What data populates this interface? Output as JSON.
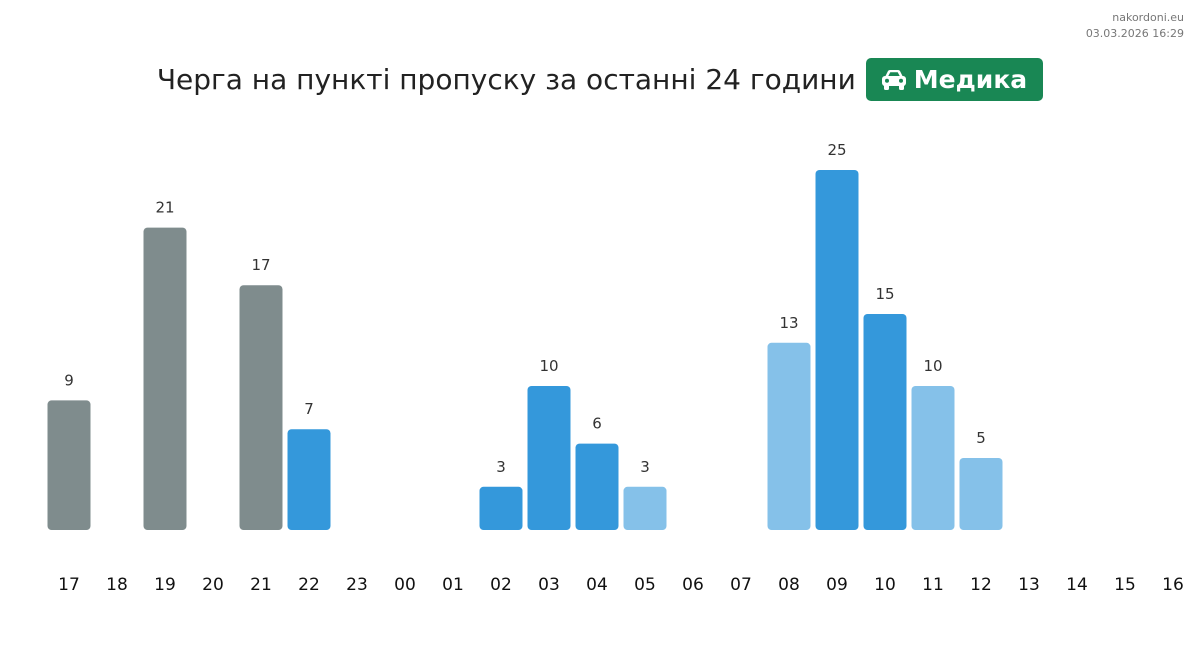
{
  "site": {
    "name": "nakordoni.eu",
    "timestamp": "03.03.2026 16:29"
  },
  "header": {
    "title": "Черга на пункті пропуску за останні 24 години",
    "badge_icon": "car-icon",
    "badge_label": "Медика",
    "badge_color": "#198754"
  },
  "chart_data": {
    "type": "bar",
    "title": "Черга на пункті пропуску за останні 24 години",
    "xlabel": "",
    "ylabel": "",
    "ylim": [
      0,
      25
    ],
    "grid": false,
    "legend": "none",
    "categories": [
      "17",
      "18",
      "19",
      "20",
      "21",
      "22",
      "23",
      "00",
      "01",
      "02",
      "03",
      "04",
      "05",
      "06",
      "07",
      "08",
      "09",
      "10",
      "11",
      "12",
      "13",
      "14",
      "15",
      "16"
    ],
    "values": [
      9,
      null,
      21,
      null,
      17,
      7,
      null,
      null,
      null,
      3,
      10,
      6,
      3,
      null,
      null,
      13,
      25,
      15,
      10,
      5,
      null,
      null,
      null,
      null
    ],
    "colors": [
      "#7f8c8d",
      null,
      "#7f8c8d",
      null,
      "#7f8c8d",
      "#3498db",
      null,
      null,
      null,
      "#3498db",
      "#3498db",
      "#3498db",
      "#85c1e9",
      null,
      null,
      "#85c1e9",
      "#3498db",
      "#3498db",
      "#85c1e9",
      "#85c1e9",
      null,
      null,
      null,
      null
    ]
  }
}
